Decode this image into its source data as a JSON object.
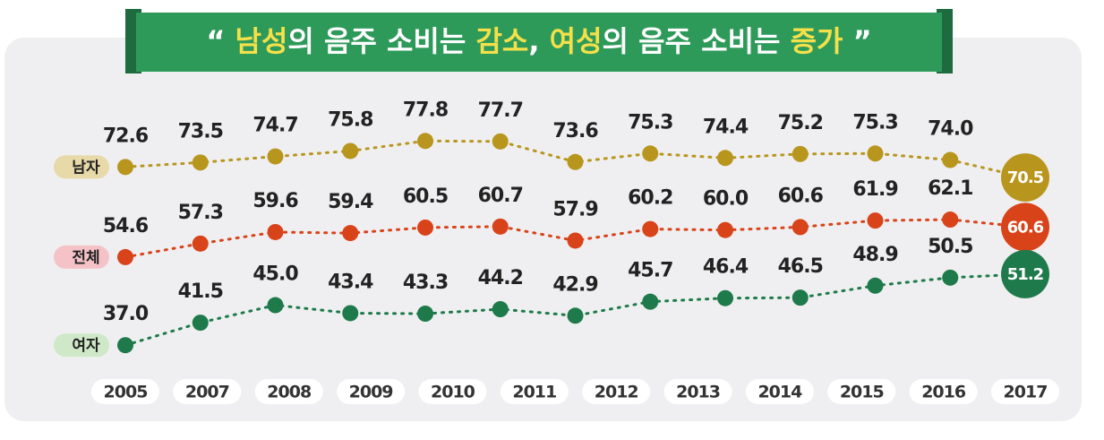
{
  "chart_data": {
    "type": "line",
    "title": [
      {
        "text": "“ ",
        "highlight": false
      },
      {
        "text": "남성",
        "highlight": true
      },
      {
        "text": "의 음주 소비는 ",
        "highlight": false
      },
      {
        "text": "감소",
        "highlight": true
      },
      {
        "text": ", ",
        "highlight": false
      },
      {
        "text": "여성",
        "highlight": true
      },
      {
        "text": "의 음주 소비는 ",
        "highlight": false
      },
      {
        "text": "증가",
        "highlight": true
      },
      {
        "text": " ”",
        "highlight": false
      }
    ],
    "highlight_color": "#f5e04a",
    "categories": [
      "2005",
      null,
      "2007",
      "2008",
      "2009",
      "2010",
      "2011",
      "2012",
      "2013",
      "2014",
      "2015",
      "2016",
      "2017"
    ],
    "series": [
      {
        "name": "남자",
        "color": "#b8961e",
        "label_bg": "#e8d9a8",
        "values": [
          72.6,
          73.5,
          74.7,
          75.8,
          77.8,
          77.7,
          73.6,
          75.3,
          74.4,
          75.2,
          75.3,
          74.0,
          70.5
        ],
        "value_labels": [
          "72.6",
          "73.5",
          "74.7",
          "75.8",
          "77.8",
          "77.7",
          "73.6",
          "75.3",
          "74.4",
          "75.2",
          "75.3",
          "74.0",
          "70.5"
        ]
      },
      {
        "name": "전체",
        "color": "#d9431a",
        "label_bg": "#f5c2c8",
        "values": [
          54.6,
          57.3,
          59.6,
          59.4,
          60.5,
          60.7,
          57.9,
          60.2,
          60.0,
          60.6,
          61.9,
          62.1,
          60.6
        ],
        "value_labels": [
          "54.6",
          "57.3",
          "59.6",
          "59.4",
          "60.5",
          "60.7",
          "57.9",
          "60.2",
          "60.0",
          "60.6",
          "61.9",
          "62.1",
          "60.6"
        ]
      },
      {
        "name": "여자",
        "color": "#1e7a4a",
        "label_bg": "#cfe9c8",
        "values": [
          37.0,
          41.5,
          45.0,
          43.4,
          43.3,
          44.2,
          42.9,
          45.7,
          46.4,
          46.5,
          48.9,
          50.5,
          51.2
        ],
        "value_labels": [
          "37.0",
          "41.5",
          "45.0",
          "43.4",
          "43.3",
          "44.2",
          "42.9",
          "45.7",
          "46.4",
          "46.5",
          "48.9",
          "50.5",
          "51.2"
        ]
      }
    ],
    "ylim": [
      34,
      80
    ]
  }
}
